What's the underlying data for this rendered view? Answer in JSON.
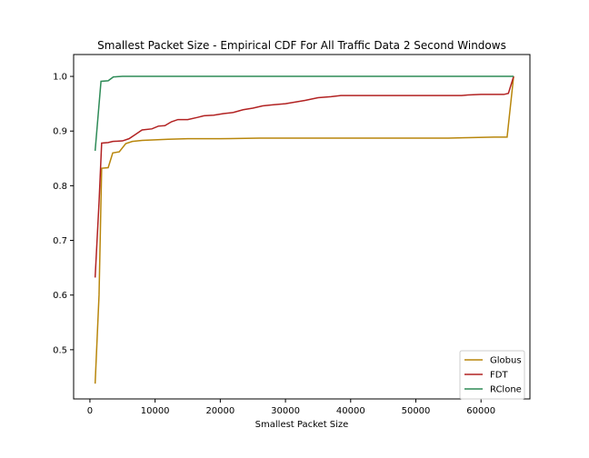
{
  "chart_data": {
    "type": "line",
    "title": "Smallest Packet Size - Empirical CDF For All Traffic Data 2 Second Windows",
    "xlabel": "Smallest Packet Size",
    "ylabel": "",
    "xlim": [
      -2500,
      67500
    ],
    "ylim": [
      0.41,
      1.04
    ],
    "xticks": [
      0,
      10000,
      20000,
      30000,
      40000,
      50000,
      60000
    ],
    "yticks": [
      0.5,
      0.6,
      0.7,
      0.8,
      0.9,
      1.0
    ],
    "ytick_labels": [
      "0.5",
      "0.6",
      "0.7",
      "0.8",
      "0.9",
      "1.0"
    ],
    "grid": false,
    "legend_position": "lower-right",
    "series": [
      {
        "name": "Globus",
        "color": "#b8860b",
        "points": [
          [
            800,
            0.438
          ],
          [
            1400,
            0.6
          ],
          [
            1800,
            0.832
          ],
          [
            2800,
            0.833
          ],
          [
            3500,
            0.86
          ],
          [
            4500,
            0.862
          ],
          [
            5500,
            0.877
          ],
          [
            6500,
            0.881
          ],
          [
            8000,
            0.883
          ],
          [
            10000,
            0.884
          ],
          [
            12000,
            0.885
          ],
          [
            15000,
            0.886
          ],
          [
            20000,
            0.886
          ],
          [
            26000,
            0.887
          ],
          [
            30000,
            0.887
          ],
          [
            40000,
            0.887
          ],
          [
            50000,
            0.887
          ],
          [
            55000,
            0.887
          ],
          [
            58000,
            0.888
          ],
          [
            62000,
            0.889
          ],
          [
            64000,
            0.889
          ],
          [
            65000,
            1.0
          ]
        ]
      },
      {
        "name": "FDT",
        "color": "#b22222",
        "points": [
          [
            800,
            0.632
          ],
          [
            1400,
            0.77
          ],
          [
            1800,
            0.878
          ],
          [
            2800,
            0.879
          ],
          [
            3500,
            0.881
          ],
          [
            5000,
            0.882
          ],
          [
            6000,
            0.886
          ],
          [
            7000,
            0.894
          ],
          [
            8000,
            0.902
          ],
          [
            9500,
            0.904
          ],
          [
            10500,
            0.909
          ],
          [
            11500,
            0.91
          ],
          [
            12500,
            0.917
          ],
          [
            13500,
            0.921
          ],
          [
            15000,
            0.921
          ],
          [
            16500,
            0.925
          ],
          [
            17500,
            0.928
          ],
          [
            19000,
            0.929
          ],
          [
            20500,
            0.932
          ],
          [
            22000,
            0.934
          ],
          [
            23500,
            0.939
          ],
          [
            25000,
            0.942
          ],
          [
            26500,
            0.946
          ],
          [
            28000,
            0.948
          ],
          [
            30000,
            0.95
          ],
          [
            33000,
            0.956
          ],
          [
            35000,
            0.961
          ],
          [
            37000,
            0.963
          ],
          [
            38500,
            0.965
          ],
          [
            42000,
            0.965
          ],
          [
            50000,
            0.965
          ],
          [
            57000,
            0.965
          ],
          [
            58000,
            0.966
          ],
          [
            60000,
            0.967
          ],
          [
            63500,
            0.967
          ],
          [
            64200,
            0.969
          ],
          [
            65000,
            1.0
          ]
        ]
      },
      {
        "name": "RClone",
        "color": "#2e8b57",
        "points": [
          [
            800,
            0.864
          ],
          [
            1700,
            0.991
          ],
          [
            2800,
            0.992
          ],
          [
            3600,
            0.999
          ],
          [
            5000,
            1.0
          ],
          [
            30000,
            1.0
          ],
          [
            60000,
            1.0
          ],
          [
            64000,
            1.0
          ],
          [
            65000,
            1.0
          ]
        ]
      }
    ]
  }
}
